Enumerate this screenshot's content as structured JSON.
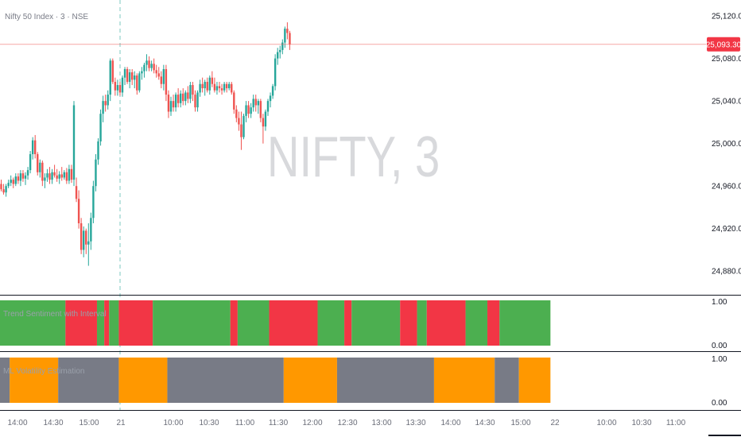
{
  "chart_data": {
    "type": "candlestick",
    "title": "Nifty 50 Index · 3 · NSE",
    "watermark": "NIFTY, 3",
    "last_price_label": "25,093.30",
    "last_price": 25093.3,
    "price_ticks": [
      "25,120.00",
      "25,080.00",
      "25,040.00",
      "25,000.00",
      "24,960.00",
      "24,920.00",
      "24,880.00"
    ],
    "ylim": [
      24860,
      25135
    ],
    "time_ticks": [
      "14:00",
      "14:30",
      "15:00",
      "21",
      "10:00",
      "10:30",
      "11:00",
      "11:30",
      "12:00",
      "12:30",
      "13:00",
      "13:30",
      "14:00",
      "14:30",
      "15:00",
      "22",
      "10:00",
      "10:30",
      "11:00"
    ],
    "colors": {
      "up": "#26a69a",
      "down": "#ef5350",
      "green_band": "#4caf50",
      "red_band": "#f23645",
      "gray_band": "#787b86",
      "orange_band": "#ff9800"
    },
    "candles": [
      [
        24962,
        24966,
        24955,
        24957
      ],
      [
        24957,
        24962,
        24952,
        24954
      ],
      [
        24954,
        24962,
        24950,
        24960
      ],
      [
        24960,
        24966,
        24958,
        24963
      ],
      [
        24963,
        24970,
        24960,
        24966
      ],
      [
        24966,
        24968,
        24958,
        24962
      ],
      [
        24962,
        24972,
        24960,
        24969
      ],
      [
        24969,
        24972,
        24962,
        24965
      ],
      [
        24965,
        24975,
        24960,
        24972
      ],
      [
        24972,
        24975,
        24964,
        24967
      ],
      [
        24967,
        24973,
        24961,
        24970
      ],
      [
        24970,
        24978,
        24966,
        24975
      ],
      [
        24975,
        24993,
        24972,
        24990
      ],
      [
        24990,
        25006,
        24985,
        25003
      ],
      [
        25003,
        25008,
        24986,
        24990
      ],
      [
        24990,
        24992,
        24970,
        24973
      ],
      [
        24973,
        24985,
        24968,
        24982
      ],
      [
        24982,
        24984,
        24960,
        24965
      ],
      [
        24965,
        24972,
        24958,
        24968
      ],
      [
        24968,
        24976,
        24964,
        24972
      ],
      [
        24972,
        24978,
        24962,
        24966
      ],
      [
        24966,
        24976,
        24962,
        24973
      ],
      [
        24973,
        24980,
        24968,
        24970
      ],
      [
        24970,
        24976,
        24964,
        24967
      ],
      [
        24967,
        24974,
        24962,
        24971
      ],
      [
        24971,
        24978,
        24965,
        24968
      ],
      [
        24968,
        24975,
        24966,
        24973
      ],
      [
        24973,
        24977,
        24962,
        24965
      ],
      [
        24965,
        24980,
        24962,
        24976
      ],
      [
        24976,
        24980,
        24963,
        24966
      ],
      [
        24966,
        25040,
        24960,
        25036
      ],
      [
        24960,
        24968,
        24945,
        24948
      ],
      [
        24948,
        24956,
        24920,
        24925
      ],
      [
        24925,
        24930,
        24896,
        24900
      ],
      [
        24900,
        24922,
        24893,
        24918
      ],
      [
        24918,
        24920,
        24896,
        24905
      ],
      [
        24905,
        24925,
        24885,
        24908
      ],
      [
        24908,
        24935,
        24900,
        24930
      ],
      [
        24930,
        24965,
        24925,
        24960
      ],
      [
        24960,
        24990,
        24955,
        24985
      ],
      [
        24985,
        25005,
        24980,
        25002
      ],
      [
        25002,
        25032,
        24998,
        25028
      ],
      [
        25028,
        25045,
        25020,
        25040
      ],
      [
        25040,
        25046,
        25030,
        25036
      ],
      [
        25036,
        25050,
        25032,
        25046
      ],
      [
        25046,
        25080,
        25040,
        25078
      ],
      [
        25078,
        25080,
        25056,
        25058
      ],
      [
        25058,
        25062,
        25045,
        25050
      ],
      [
        25050,
        25060,
        25045,
        25055
      ],
      [
        25055,
        25058,
        25045,
        25048
      ],
      [
        25048,
        25064,
        25044,
        25062
      ],
      [
        25062,
        25072,
        25055,
        25070
      ],
      [
        25070,
        25072,
        25056,
        25058
      ],
      [
        25058,
        25070,
        25052,
        25067
      ],
      [
        25067,
        25070,
        25055,
        25060
      ],
      [
        25060,
        25068,
        25052,
        25064
      ],
      [
        25064,
        25066,
        25046,
        25050
      ],
      [
        25050,
        25068,
        25048,
        25066
      ],
      [
        25066,
        25072,
        25060,
        25068
      ],
      [
        25068,
        25076,
        25062,
        25074
      ],
      [
        25074,
        25084,
        25068,
        25078
      ],
      [
        25078,
        25082,
        25068,
        25071
      ],
      [
        25071,
        25078,
        25068,
        25075
      ],
      [
        25075,
        25080,
        25066,
        25069
      ],
      [
        25069,
        25074,
        25062,
        25066
      ],
      [
        25066,
        25072,
        25060,
        25063
      ],
      [
        25063,
        25068,
        25052,
        25056
      ],
      [
        25056,
        25074,
        25050,
        25070
      ],
      [
        25070,
        25074,
        25040,
        25046
      ],
      [
        25046,
        25050,
        25024,
        25030
      ],
      [
        25030,
        25044,
        25026,
        25040
      ],
      [
        25040,
        25046,
        25030,
        25034
      ],
      [
        25034,
        25048,
        25030,
        25046
      ],
      [
        25046,
        25052,
        25034,
        25038
      ],
      [
        25038,
        25050,
        25034,
        25047
      ],
      [
        25047,
        25052,
        25036,
        25040
      ],
      [
        25040,
        25050,
        25036,
        25048
      ],
      [
        25048,
        25054,
        25038,
        25042
      ],
      [
        25042,
        25058,
        25038,
        25055
      ],
      [
        25055,
        25058,
        25040,
        25046
      ],
      [
        25046,
        25050,
        25030,
        25034
      ],
      [
        25034,
        25050,
        25030,
        25048
      ],
      [
        25048,
        25060,
        25044,
        25056
      ],
      [
        25056,
        25062,
        25048,
        25052
      ],
      [
        25052,
        25060,
        25045,
        25058
      ],
      [
        25058,
        25062,
        25048,
        25050
      ],
      [
        25050,
        25064,
        25046,
        25062
      ],
      [
        25062,
        25068,
        25053,
        25056
      ],
      [
        25056,
        25062,
        25048,
        25050
      ],
      [
        25050,
        25058,
        25046,
        25054
      ],
      [
        25054,
        25058,
        25048,
        25052
      ],
      [
        25052,
        25056,
        25046,
        25050
      ],
      [
        25050,
        25058,
        25048,
        25056
      ],
      [
        25056,
        25058,
        25048,
        25052
      ],
      [
        25052,
        25058,
        25050,
        25056
      ],
      [
        25056,
        25058,
        25046,
        25048
      ],
      [
        25048,
        25050,
        25028,
        25032
      ],
      [
        25032,
        25036,
        25020,
        25024
      ],
      [
        25024,
        25030,
        25012,
        25018
      ],
      [
        25018,
        25030,
        24994,
        25006
      ],
      [
        25006,
        25028,
        25004,
        25026
      ],
      [
        25026,
        25040,
        25020,
        25036
      ],
      [
        25036,
        25040,
        25024,
        25028
      ],
      [
        25028,
        25038,
        25024,
        25034
      ],
      [
        25034,
        25046,
        25030,
        25042
      ],
      [
        25042,
        25046,
        25030,
        25036
      ],
      [
        25036,
        25042,
        25028,
        25040
      ],
      [
        25040,
        25042,
        25020,
        25024
      ],
      [
        25024,
        25028,
        25000,
        25016
      ],
      [
        25016,
        25032,
        25012,
        25030
      ],
      [
        25030,
        25042,
        25026,
        25040
      ],
      [
        25040,
        25048,
        25034,
        25045
      ],
      [
        25045,
        25056,
        25042,
        25054
      ],
      [
        25054,
        25084,
        25050,
        25080
      ],
      [
        25080,
        25090,
        25074,
        25086
      ],
      [
        25086,
        25092,
        25080,
        25088
      ],
      [
        25088,
        25098,
        25084,
        25095
      ],
      [
        25095,
        25110,
        25090,
        25108
      ],
      [
        25108,
        25114,
        25098,
        25104
      ],
      [
        25104,
        25106,
        25088,
        25093.3
      ]
    ],
    "panels": [
      {
        "title": "Trend Sentiment with Interval",
        "ticks": [
          "1.00",
          "0.00"
        ],
        "segments": [
          [
            "green",
            0,
            27
          ],
          [
            "red",
            27,
            40
          ],
          [
            "green",
            40,
            43
          ],
          [
            "red",
            43,
            45
          ],
          [
            "green",
            45,
            49
          ],
          [
            "red",
            49,
            63
          ],
          [
            "green",
            63,
            95
          ],
          [
            "red",
            95,
            98
          ],
          [
            "green",
            98,
            111
          ],
          [
            "red",
            111,
            131
          ],
          [
            "green",
            131,
            142
          ],
          [
            "red",
            142,
            145
          ],
          [
            "green",
            145,
            165
          ],
          [
            "red",
            165,
            172
          ],
          [
            "green",
            172,
            176
          ],
          [
            "red",
            176,
            192
          ],
          [
            "green",
            192,
            201
          ],
          [
            "red",
            201,
            206
          ],
          [
            "green",
            206,
            227
          ]
        ]
      },
      {
        "title": "ML Volatility Estimation",
        "ticks": [
          "1.00",
          "0.00"
        ],
        "segments": [
          [
            "gray",
            0,
            4
          ],
          [
            "orange",
            4,
            24
          ],
          [
            "gray",
            24,
            49
          ],
          [
            "orange",
            49,
            69
          ],
          [
            "gray",
            69,
            117
          ],
          [
            "orange",
            117,
            139
          ],
          [
            "gray",
            139,
            179
          ],
          [
            "orange",
            179,
            204
          ],
          [
            "gray",
            204,
            214
          ],
          [
            "orange",
            214,
            227
          ]
        ]
      }
    ]
  }
}
